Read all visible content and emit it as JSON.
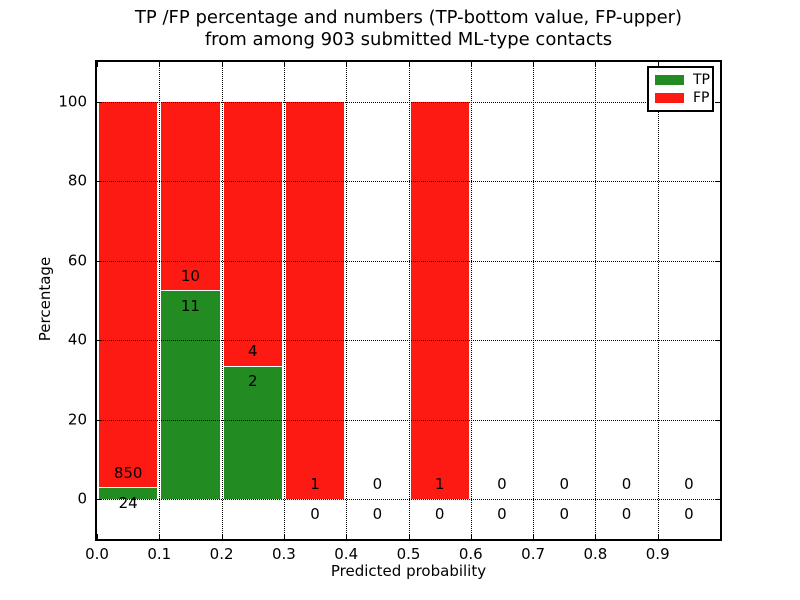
{
  "title": {
    "line1": "TP /FP percentage and numbers (TP-bottom value, FP-upper)",
    "line2": "from among 903 submitted ML-type contacts"
  },
  "chart_data": {
    "type": "bar",
    "stacked": true,
    "title": "TP /FP percentage and numbers (TP-bottom value, FP-upper)\nfrom among 903 submitted ML-type contacts",
    "xlabel": "Predicted probability",
    "ylabel": "Percentage",
    "xlim": [
      0.0,
      1.0
    ],
    "ylim": [
      -10,
      110
    ],
    "x_tick_labels": [
      "0.0",
      "0.1",
      "0.2",
      "0.3",
      "0.4",
      "0.5",
      "0.6",
      "0.7",
      "0.8",
      "0.9"
    ],
    "y_tick_values": [
      0,
      20,
      40,
      60,
      80,
      100
    ],
    "grid": {
      "visible": true,
      "style": "dotted",
      "color": "#000000"
    },
    "total_contacts": 903,
    "colors": {
      "tp": "#228b22",
      "fp": "#fc1a13"
    },
    "legend": {
      "position": "upper right",
      "entries": [
        {
          "label": "TP",
          "color": "#228b22"
        },
        {
          "label": "FP",
          "color": "#fc1a13"
        }
      ]
    },
    "series": [
      {
        "name": "TP",
        "counts": [
          24,
          11,
          2,
          0,
          0,
          0,
          0,
          0,
          0,
          0
        ]
      },
      {
        "name": "FP",
        "counts": [
          850,
          10,
          4,
          1,
          0,
          1,
          0,
          0,
          0,
          0
        ]
      }
    ],
    "bins": [
      {
        "x0": 0.0,
        "x1": 0.1,
        "tp": 24,
        "fp": 850,
        "tp_pct": 2.75,
        "fp_pct": 97.25
      },
      {
        "x0": 0.1,
        "x1": 0.2,
        "tp": 11,
        "fp": 10,
        "tp_pct": 52.38,
        "fp_pct": 47.62
      },
      {
        "x0": 0.2,
        "x1": 0.3,
        "tp": 2,
        "fp": 4,
        "tp_pct": 33.33,
        "fp_pct": 66.67
      },
      {
        "x0": 0.3,
        "x1": 0.4,
        "tp": 0,
        "fp": 1,
        "tp_pct": 0,
        "fp_pct": 100
      },
      {
        "x0": 0.4,
        "x1": 0.5,
        "tp": 0,
        "fp": 0,
        "tp_pct": 0,
        "fp_pct": 0
      },
      {
        "x0": 0.5,
        "x1": 0.6,
        "tp": 0,
        "fp": 1,
        "tp_pct": 0,
        "fp_pct": 100
      },
      {
        "x0": 0.6,
        "x1": 0.7,
        "tp": 0,
        "fp": 0,
        "tp_pct": 0,
        "fp_pct": 0
      },
      {
        "x0": 0.7,
        "x1": 0.8,
        "tp": 0,
        "fp": 0,
        "tp_pct": 0,
        "fp_pct": 0
      },
      {
        "x0": 0.8,
        "x1": 0.9,
        "tp": 0,
        "fp": 0,
        "tp_pct": 0,
        "fp_pct": 0
      },
      {
        "x0": 0.9,
        "x1": 1.0,
        "tp": 0,
        "fp": 0,
        "tp_pct": 0,
        "fp_pct": 0
      }
    ]
  }
}
